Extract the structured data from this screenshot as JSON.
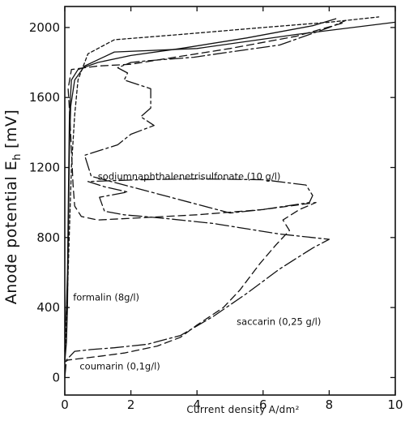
{
  "chart_data": {
    "type": "line",
    "title": "",
    "xlabel": "Current density A/dm²",
    "ylabel": "Anode potential E",
    "ylabel_subscript": "h",
    "ylabel_unit": "[mV]",
    "xlim": [
      0,
      10
    ],
    "ylim": [
      -100,
      2120
    ],
    "xticks": [
      "0",
      "2",
      "4",
      "6",
      "8",
      "10"
    ],
    "yticks": [
      "0",
      "400",
      "800",
      "1200",
      "1600",
      "2000"
    ],
    "grid": false,
    "series": [
      {
        "name": "sodiumnaphthalenetrisulfonate (10 g/l)",
        "dash": "16,4,3,4",
        "points": [
          [
            0.0,
            0
          ],
          [
            0.05,
            100
          ],
          [
            0.3,
            150
          ],
          [
            0.8,
            160
          ],
          [
            1.5,
            170
          ],
          [
            2.5,
            190
          ],
          [
            3.5,
            240
          ],
          [
            4.5,
            350
          ],
          [
            5.5,
            480
          ],
          [
            6.5,
            620
          ],
          [
            7.5,
            740
          ],
          [
            8.0,
            790
          ],
          [
            6.5,
            820
          ],
          [
            5.5,
            850
          ],
          [
            4.5,
            880
          ],
          [
            3.0,
            910
          ],
          [
            1.8,
            930
          ],
          [
            1.2,
            950
          ],
          [
            1.05,
            1030
          ],
          [
            1.9,
            1060
          ],
          [
            1.2,
            1090
          ],
          [
            0.7,
            1120
          ],
          [
            2.2,
            1130
          ],
          [
            4.0,
            1135
          ],
          [
            6.0,
            1130
          ],
          [
            7.3,
            1100
          ],
          [
            7.5,
            1040
          ],
          [
            7.4,
            1000
          ],
          [
            6.0,
            960
          ],
          [
            5.0,
            940
          ],
          [
            0.8,
            1150
          ],
          [
            0.6,
            1270
          ],
          [
            1.6,
            1330
          ],
          [
            2.0,
            1390
          ],
          [
            2.7,
            1440
          ],
          [
            2.3,
            1490
          ],
          [
            2.6,
            1540
          ],
          [
            2.6,
            1650
          ],
          [
            1.8,
            1700
          ],
          [
            1.9,
            1740
          ],
          [
            1.6,
            1770
          ],
          [
            2.0,
            1800
          ],
          [
            2.5,
            1810
          ],
          [
            3.9,
            1830
          ],
          [
            5.0,
            1860
          ],
          [
            6.5,
            1900
          ],
          [
            8.0,
            2000
          ],
          [
            8.5,
            2040
          ]
        ]
      },
      {
        "name": "saccarin (0,25 g/l)",
        "dash": "9,5",
        "points": [
          [
            0.0,
            90
          ],
          [
            0.1,
            100
          ],
          [
            1.0,
            120
          ],
          [
            1.8,
            140
          ],
          [
            2.8,
            180
          ],
          [
            3.5,
            230
          ],
          [
            4.0,
            300
          ],
          [
            4.8,
            400
          ],
          [
            5.3,
            500
          ],
          [
            5.9,
            650
          ],
          [
            6.4,
            760
          ],
          [
            6.8,
            840
          ],
          [
            6.6,
            900
          ],
          [
            7.1,
            960
          ],
          [
            7.6,
            1000
          ],
          [
            6.0,
            960
          ],
          [
            4.0,
            930
          ],
          [
            2.0,
            910
          ],
          [
            1.0,
            900
          ],
          [
            0.5,
            920
          ],
          [
            0.3,
            980
          ],
          [
            0.25,
            1100
          ],
          [
            0.2,
            1300
          ],
          [
            0.15,
            1500
          ],
          [
            0.1,
            1650
          ],
          [
            0.2,
            1760
          ],
          [
            1.0,
            1780
          ],
          [
            2.0,
            1790
          ],
          [
            3.0,
            1820
          ],
          [
            5.0,
            1880
          ],
          [
            7.0,
            1950
          ],
          [
            8.5,
            2030
          ]
        ]
      },
      {
        "name": "formalin (8g/l)",
        "dash": "none",
        "points": [
          [
            0.0,
            150
          ],
          [
            0.02,
            300
          ],
          [
            0.05,
            400
          ],
          [
            0.08,
            600
          ],
          [
            0.1,
            900
          ],
          [
            0.12,
            1200
          ],
          [
            0.14,
            1500
          ],
          [
            0.2,
            1700
          ],
          [
            0.4,
            1760
          ],
          [
            1.0,
            1800
          ],
          [
            2.0,
            1840
          ],
          [
            3.5,
            1880
          ],
          [
            5.5,
            1940
          ],
          [
            7.5,
            2010
          ],
          [
            8.2,
            2050
          ]
        ]
      },
      {
        "name": "coumarin (0,1g/l)",
        "dash": "none",
        "points": [
          [
            0.0,
            90
          ],
          [
            0.05,
            200
          ],
          [
            0.08,
            400
          ],
          [
            0.1,
            700
          ],
          [
            0.12,
            1000
          ],
          [
            0.14,
            1300
          ],
          [
            0.18,
            1550
          ],
          [
            0.3,
            1700
          ],
          [
            0.6,
            1780
          ],
          [
            1.5,
            1860
          ],
          [
            4.0,
            1880
          ],
          [
            7.0,
            1960
          ],
          [
            10.0,
            2030
          ]
        ]
      },
      {
        "name": "",
        "dash": "4,3",
        "points": [
          [
            0.0,
            100
          ],
          [
            0.05,
            300
          ],
          [
            0.1,
            600
          ],
          [
            0.15,
            900
          ],
          [
            0.2,
            1200
          ],
          [
            0.3,
            1500
          ],
          [
            0.4,
            1700
          ],
          [
            0.7,
            1850
          ],
          [
            1.5,
            1930
          ],
          [
            3.5,
            1960
          ],
          [
            6.0,
            2000
          ],
          [
            8.0,
            2030
          ],
          [
            9.5,
            2060
          ]
        ]
      }
    ],
    "annotations": [
      {
        "text": "sodiumnaphthalenetrisulfonate (10 g/l)",
        "x": 1.0,
        "y": 1130
      },
      {
        "text": "formalin (8g/l)",
        "x": 0.25,
        "y": 440
      },
      {
        "text": "saccarin (0,25 g/l)",
        "x": 5.2,
        "y": 300
      },
      {
        "text": "coumarin (0,1g/l)",
        "x": 0.45,
        "y": 45
      }
    ]
  }
}
